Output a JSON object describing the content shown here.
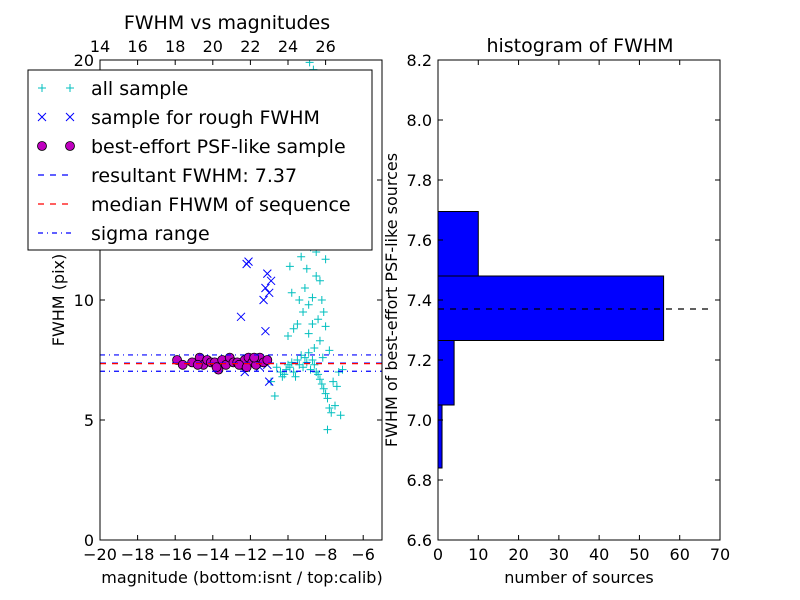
{
  "chart_data": [
    {
      "type": "scatter",
      "title": "FWHM vs magnitudes",
      "xlabel": "magnitude (bottom:isnt / top:calib)",
      "ylabel": "FWHM (pix)",
      "xlim": [
        -20,
        -5
      ],
      "ylim": [
        0,
        20
      ],
      "x_ticks": [
        -20,
        -18,
        -16,
        -14,
        -12,
        -10,
        -8,
        -6
      ],
      "x_tick_labels": [
        "−20",
        "−18",
        "−16",
        "−14",
        "−12",
        "−10",
        "−8",
        "−6"
      ],
      "y_ticks": [
        0,
        5,
        10,
        15,
        20
      ],
      "y_tick_labels": [
        "0",
        "5",
        "10",
        "15",
        "20"
      ],
      "top_axis": {
        "offset": 34,
        "ticks": [
          14,
          16,
          18,
          20,
          22,
          24,
          26
        ],
        "tick_labels": [
          "14",
          "16",
          "18",
          "20",
          "22",
          "24",
          "26"
        ]
      },
      "legend": {
        "placement": "upper-left",
        "entries": [
          {
            "label": "all sample",
            "marker": "plus",
            "color": "#00bfbf"
          },
          {
            "label": "sample for rough FWHM",
            "marker": "x",
            "color": "#0000ff"
          },
          {
            "label": "best-effort PSF-like sample",
            "marker": "circle",
            "color": "#bf00bf"
          },
          {
            "label": "resultant FWHM: 7.37",
            "marker": "dashed",
            "color": "#0000ff"
          },
          {
            "label": "median FHWM of sequence",
            "marker": "dashed",
            "color": "#ff0000"
          },
          {
            "label": "sigma range",
            "marker": "dashdot",
            "color": "#0000ff"
          }
        ]
      },
      "reference_lines": [
        {
          "y": 7.37,
          "color": "#0000ff",
          "style": "dashed"
        },
        {
          "y": 7.35,
          "color": "#ff0000",
          "style": "dashed"
        },
        {
          "y": 7.03,
          "color": "#0000ff",
          "style": "dashdot"
        },
        {
          "y": 7.71,
          "color": "#0000ff",
          "style": "dashdot"
        }
      ],
      "series": [
        {
          "name": "all sample",
          "marker": "plus",
          "color": "#00bfbf",
          "points": [
            [
              -10.6,
              7.2
            ],
            [
              -10.4,
              7.0
            ],
            [
              -10.3,
              6.8
            ],
            [
              -10.2,
              6.9
            ],
            [
              -10.1,
              7.1
            ],
            [
              -10.0,
              7.3
            ],
            [
              -10.7,
              6.0
            ],
            [
              -10.9,
              6.6
            ],
            [
              -9.9,
              7.2
            ],
            [
              -9.8,
              7.4
            ],
            [
              -9.7,
              7.0
            ],
            [
              -9.6,
              6.8
            ],
            [
              -9.5,
              7.5
            ],
            [
              -9.4,
              7.3
            ],
            [
              -9.3,
              7.7
            ],
            [
              -9.2,
              7.2
            ],
            [
              -9.1,
              7.6
            ],
            [
              -9.0,
              7.4
            ],
            [
              -8.9,
              7.8
            ],
            [
              -8.8,
              7.1
            ],
            [
              -8.7,
              7.5
            ],
            [
              -8.6,
              7.3
            ],
            [
              -8.5,
              7.0
            ],
            [
              -8.4,
              6.9
            ],
            [
              -8.3,
              6.7
            ],
            [
              -8.2,
              6.5
            ],
            [
              -8.1,
              6.3
            ],
            [
              -8.0,
              6.1
            ],
            [
              -7.9,
              5.9
            ],
            [
              -7.8,
              5.5
            ],
            [
              -7.7,
              5.3
            ],
            [
              -7.9,
              4.6
            ],
            [
              -7.5,
              5.6
            ],
            [
              -7.2,
              5.2
            ],
            [
              -7.4,
              6.4
            ],
            [
              -7.6,
              6.6
            ],
            [
              -7.3,
              7.0
            ],
            [
              -7.1,
              7.1
            ],
            [
              -9.2,
              9.5
            ],
            [
              -9.1,
              10.5
            ],
            [
              -9.0,
              11.3
            ],
            [
              -8.9,
              9.8
            ],
            [
              -8.8,
              12.2
            ],
            [
              -8.7,
              10.1
            ],
            [
              -8.6,
              13.4
            ],
            [
              -8.5,
              11.0
            ],
            [
              -8.4,
              9.2
            ],
            [
              -8.3,
              10.8
            ],
            [
              -8.2,
              12.6
            ],
            [
              -8.1,
              9.5
            ],
            [
              -8.0,
              11.7
            ],
            [
              -9.4,
              10.0
            ],
            [
              -9.3,
              11.8
            ],
            [
              -9.5,
              9.0
            ],
            [
              -9.6,
              12.5
            ],
            [
              -9.7,
              8.8
            ],
            [
              -9.8,
              10.3
            ],
            [
              -9.9,
              11.4
            ],
            [
              -10.0,
              8.5
            ],
            [
              -8.55,
              14.5
            ],
            [
              -8.75,
              15.3
            ],
            [
              -8.95,
              13.8
            ],
            [
              -9.15,
              16.0
            ],
            [
              -9.35,
              14.2
            ],
            [
              -8.45,
              15.8
            ],
            [
              -8.25,
              13.3
            ],
            [
              -8.85,
              17.0
            ],
            [
              -9.05,
              18.5
            ],
            [
              -8.65,
              19.6
            ],
            [
              -8.85,
              19.9
            ],
            [
              -8.9,
              8.6
            ],
            [
              -8.6,
              8.0
            ],
            [
              -8.3,
              8.3
            ],
            [
              -8.0,
              8.9
            ],
            [
              -7.8,
              7.9
            ],
            [
              -8.15,
              7.6
            ],
            [
              -8.7,
              9.0
            ],
            [
              -8.2,
              10.0
            ],
            [
              -8.5,
              12.0
            ],
            [
              -9.25,
              13.0
            ],
            [
              -9.45,
              12.8
            ],
            [
              -8.35,
              14.6
            ],
            [
              -8.05,
              12.9
            ]
          ]
        },
        {
          "name": "sample for rough FWHM",
          "marker": "x",
          "color": "#0000ff",
          "points": [
            [
              -12.1,
              11.6
            ],
            [
              -12.2,
              11.5
            ],
            [
              -12.5,
              9.3
            ],
            [
              -11.1,
              11.1
            ],
            [
              -11.2,
              10.5
            ],
            [
              -11.0,
              10.3
            ],
            [
              -11.3,
              10.0
            ],
            [
              -10.9,
              10.8
            ],
            [
              -11.2,
              8.7
            ],
            [
              -11.1,
              7.3
            ],
            [
              -11.0,
              6.6
            ],
            [
              -12.3,
              7.0
            ],
            [
              -11.5,
              7.2
            ],
            [
              -11.8,
              7.4
            ],
            [
              -11.6,
              7.6
            ]
          ]
        },
        {
          "name": "best-effort PSF-like sample",
          "marker": "circle",
          "color": "#bf00bf",
          "points": [
            [
              -15.9,
              7.5
            ],
            [
              -15.6,
              7.3
            ],
            [
              -15.1,
              7.4
            ],
            [
              -14.7,
              7.6
            ],
            [
              -14.5,
              7.3
            ],
            [
              -14.3,
              7.5
            ],
            [
              -14.1,
              7.4
            ],
            [
              -13.9,
              7.4
            ],
            [
              -13.7,
              7.1
            ],
            [
              -13.5,
              7.5
            ],
            [
              -13.3,
              7.3
            ],
            [
              -13.1,
              7.6
            ],
            [
              -12.9,
              7.4
            ],
            [
              -12.7,
              7.4
            ],
            [
              -12.5,
              7.3
            ],
            [
              -12.3,
              7.5
            ],
            [
              -12.1,
              7.6
            ],
            [
              -11.9,
              7.4
            ],
            [
              -11.7,
              7.3
            ],
            [
              -11.5,
              7.6
            ],
            [
              -11.3,
              7.4
            ],
            [
              -11.1,
              7.5
            ],
            [
              -12.6,
              7.3
            ],
            [
              -12.2,
              7.2
            ],
            [
              -11.8,
              7.6
            ],
            [
              -14.8,
              7.3
            ],
            [
              -13.8,
              7.2
            ]
          ]
        }
      ]
    },
    {
      "type": "bar",
      "orientation": "horizontal",
      "title": "histogram of FWHM",
      "xlabel": "number of sources",
      "ylabel": "FWHM of best-effort PSF-like sources",
      "xlim": [
        0,
        70
      ],
      "ylim": [
        6.6,
        8.2
      ],
      "x_ticks": [
        0,
        10,
        20,
        30,
        40,
        50,
        60,
        70
      ],
      "x_tick_labels": [
        "0",
        "10",
        "20",
        "30",
        "40",
        "50",
        "60",
        "70"
      ],
      "y_ticks": [
        6.6,
        6.8,
        7.0,
        7.2,
        7.4,
        7.6,
        7.8,
        8.0,
        8.2
      ],
      "y_tick_labels": [
        "6.6",
        "6.8",
        "7.0",
        "7.2",
        "7.4",
        "7.6",
        "7.8",
        "8.0",
        "8.2"
      ],
      "bar_color": "#0000ff",
      "bins": [
        {
          "low": 6.84,
          "high": 7.05,
          "count": 1
        },
        {
          "low": 7.05,
          "high": 7.265,
          "count": 4
        },
        {
          "low": 7.265,
          "high": 7.48,
          "count": 56
        },
        {
          "low": 7.48,
          "high": 7.695,
          "count": 10
        }
      ],
      "reference_line": {
        "y": 7.37,
        "color": "#000000",
        "style": "dashed",
        "x_range": [
          0,
          67.5
        ]
      }
    }
  ]
}
